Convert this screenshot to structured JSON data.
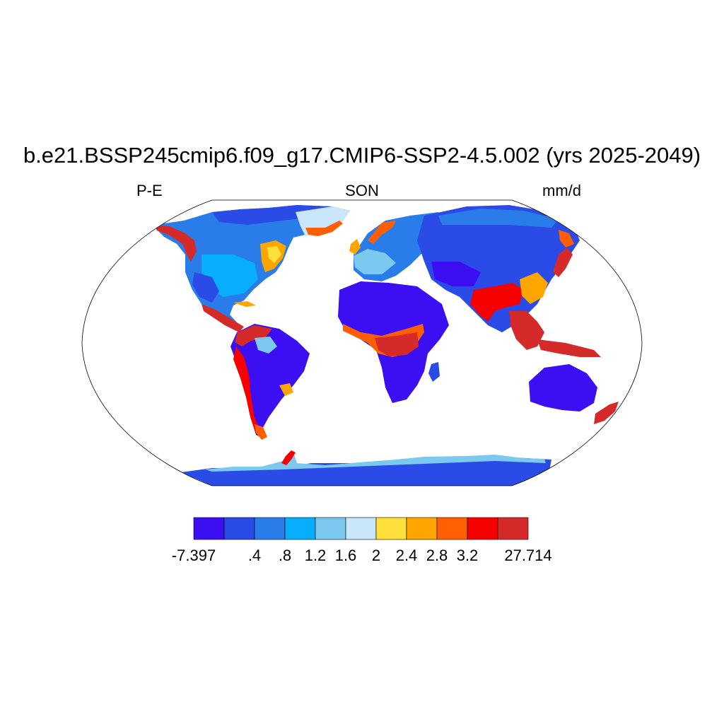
{
  "title": "b.e21.BSSP245cmip6.f09_g17.CMIP6-SSP2-4.5.002 (yrs 2025-2049)",
  "left_subtitle": "P-E",
  "center_subtitle": "SON",
  "right_subtitle": "mm/d",
  "colorbar": {
    "colors": [
      "#3b0ff2",
      "#2a4be5",
      "#2a7de8",
      "#08aefc",
      "#7cc9f0",
      "#c9e6fa",
      "#ffe03a",
      "#ffa500",
      "#ff5f00",
      "#f70000",
      "#d42a2a"
    ],
    "labels": [
      "-7.397",
      ".4",
      ".8",
      "1.2",
      "1.6",
      "2",
      "2.4",
      "2.8",
      "3.2",
      "27.714"
    ]
  },
  "map": {
    "projection": "robinson",
    "ocean_color": "#ffffff",
    "land_default_color": "#2a7de8",
    "coastline_color": "#000000"
  }
}
